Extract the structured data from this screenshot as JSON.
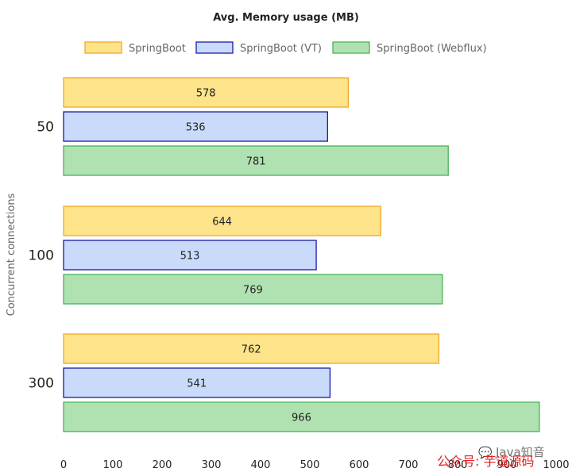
{
  "chart_data": {
    "type": "bar",
    "orientation": "horizontal",
    "title": "Avg. Memory usage (MB)",
    "ylabel": "Concurrent connections",
    "xlabel": "",
    "categories": [
      "50",
      "100",
      "300"
    ],
    "x_ticks": [
      "0",
      "100",
      "200",
      "300",
      "400",
      "500",
      "600",
      "700",
      "800",
      "900",
      "1000"
    ],
    "xlim": [
      0,
      1000
    ],
    "legend_position": "top",
    "grid": false,
    "series": [
      {
        "name": "SpringBoot",
        "values": [
          578,
          644,
          762
        ],
        "fill": "#fde38a",
        "stroke": "#f0a82a"
      },
      {
        "name": "SpringBoot (VT)",
        "values": [
          536,
          513,
          541
        ],
        "fill": "#c9dafa",
        "stroke": "#1a1aa8"
      },
      {
        "name": "SpringBoot (Webflux)",
        "values": [
          781,
          769,
          966
        ],
        "fill": "#b0e2b1",
        "stroke": "#4cb05a"
      }
    ]
  },
  "watermark": {
    "icon": "wechat-icon",
    "java_text": "Java知音",
    "red_text": "公众号: 芋道源码"
  }
}
